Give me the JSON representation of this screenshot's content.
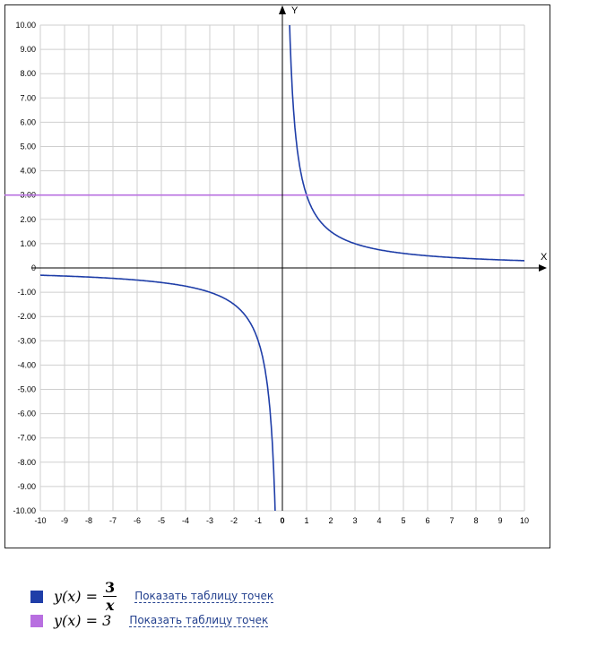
{
  "chart_data": {
    "type": "line",
    "xlabel": "X",
    "ylabel": "Y",
    "xlim": [
      -10,
      10
    ],
    "ylim": [
      -10,
      10
    ],
    "x_ticks": [
      "-10",
      "-9",
      "-8",
      "-7",
      "-6",
      "-5",
      "-4",
      "-3",
      "-2",
      "-1",
      "0",
      "1",
      "2",
      "3",
      "4",
      "5",
      "6",
      "7",
      "8",
      "9",
      "10"
    ],
    "y_ticks": [
      "10.00",
      "9.00",
      "8.00",
      "7.00",
      "6.00",
      "5.00",
      "4.00",
      "3.00",
      "2.00",
      "1.00",
      "0",
      "-1.00",
      "-2.00",
      "-3.00",
      "-4.00",
      "-5.00",
      "-6.00",
      "-7.00",
      "-8.00",
      "-9.00",
      "-10.00"
    ],
    "grid": true,
    "series": [
      {
        "name": "y(x) = 3/x",
        "function": "3/x",
        "color": "#1f3ea8"
      },
      {
        "name": "y(x) = 3",
        "function": "3",
        "color": "#b86fe0"
      }
    ]
  },
  "legend": [
    {
      "prefix": "y(x) =",
      "numerator": "3",
      "denominator": "x",
      "color": "#1f3ea8",
      "link": "Показать таблицу точек"
    },
    {
      "prefix": "y(x) = 3",
      "color": "#b86fe0",
      "link": "Показать таблицу точек"
    }
  ]
}
